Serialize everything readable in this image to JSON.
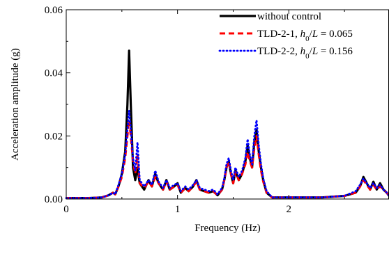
{
  "chart_data": {
    "type": "line",
    "xlabel": "Frequency (Hz)",
    "ylabel": "Acceleration amplitude (g)",
    "xlim": [
      0,
      2.9
    ],
    "ylim": [
      0,
      0.06
    ],
    "xticks": [
      0,
      1,
      2
    ],
    "xtick_labels": [
      "0",
      "1",
      "2"
    ],
    "yticks": [
      0,
      0.02,
      0.04,
      0.06
    ],
    "ytick_labels": [
      "0.00",
      "0.02",
      "0.04",
      "0.06"
    ],
    "legend_position": "top-right",
    "grid": false,
    "legend": [
      {
        "id": "s1",
        "text": "without control"
      },
      {
        "id": "s2",
        "pre": "TLD-2-1, ",
        "h": "h",
        "sub": "0",
        "slash": "/",
        "L": "L",
        "post": " = 0.065"
      },
      {
        "id": "s3",
        "pre": "TLD-2-2, ",
        "h": "h",
        "sub": "0",
        "slash": "/",
        "L": "L",
        "post": " = 0.156"
      }
    ],
    "series": [
      {
        "id": "s1",
        "name": "without control",
        "color": "#000000",
        "style": "solid",
        "points": [
          [
            0.0,
            0.0003
          ],
          [
            0.2,
            0.0003
          ],
          [
            0.32,
            0.0005
          ],
          [
            0.38,
            0.0012
          ],
          [
            0.42,
            0.002
          ],
          [
            0.44,
            0.0015
          ],
          [
            0.47,
            0.004
          ],
          [
            0.5,
            0.008
          ],
          [
            0.53,
            0.015
          ],
          [
            0.55,
            0.03
          ],
          [
            0.565,
            0.047
          ],
          [
            0.58,
            0.03
          ],
          [
            0.6,
            0.01
          ],
          [
            0.62,
            0.006
          ],
          [
            0.64,
            0.01
          ],
          [
            0.66,
            0.005
          ],
          [
            0.7,
            0.003
          ],
          [
            0.74,
            0.006
          ],
          [
            0.77,
            0.004
          ],
          [
            0.8,
            0.008
          ],
          [
            0.83,
            0.005
          ],
          [
            0.87,
            0.003
          ],
          [
            0.9,
            0.006
          ],
          [
            0.93,
            0.003
          ],
          [
            0.97,
            0.004
          ],
          [
            1.0,
            0.005
          ],
          [
            1.03,
            0.002
          ],
          [
            1.07,
            0.0035
          ],
          [
            1.1,
            0.0025
          ],
          [
            1.14,
            0.004
          ],
          [
            1.17,
            0.006
          ],
          [
            1.2,
            0.003
          ],
          [
            1.24,
            0.0025
          ],
          [
            1.28,
            0.002
          ],
          [
            1.32,
            0.0025
          ],
          [
            1.36,
            0.0012
          ],
          [
            1.4,
            0.003
          ],
          [
            1.42,
            0.006
          ],
          [
            1.44,
            0.01
          ],
          [
            1.46,
            0.012
          ],
          [
            1.48,
            0.008
          ],
          [
            1.5,
            0.005
          ],
          [
            1.52,
            0.009
          ],
          [
            1.55,
            0.006
          ],
          [
            1.58,
            0.008
          ],
          [
            1.61,
            0.012
          ],
          [
            1.63,
            0.017
          ],
          [
            1.65,
            0.013
          ],
          [
            1.67,
            0.01
          ],
          [
            1.69,
            0.018
          ],
          [
            1.71,
            0.022
          ],
          [
            1.73,
            0.015
          ],
          [
            1.75,
            0.01
          ],
          [
            1.77,
            0.006
          ],
          [
            1.8,
            0.002
          ],
          [
            1.85,
            0.0005
          ],
          [
            2.0,
            0.0005
          ],
          [
            2.3,
            0.0005
          ],
          [
            2.5,
            0.001
          ],
          [
            2.6,
            0.002
          ],
          [
            2.64,
            0.004
          ],
          [
            2.67,
            0.007
          ],
          [
            2.7,
            0.005
          ],
          [
            2.73,
            0.003
          ],
          [
            2.76,
            0.0055
          ],
          [
            2.79,
            0.003
          ],
          [
            2.82,
            0.005
          ],
          [
            2.85,
            0.003
          ],
          [
            2.88,
            0.002
          ],
          [
            2.9,
            0.001
          ]
        ]
      },
      {
        "id": "s2",
        "name": "TLD-2-1, h0/L = 0.065",
        "color": "#ff0000",
        "style": "dash",
        "points": [
          [
            0.0,
            0.0003
          ],
          [
            0.2,
            0.0003
          ],
          [
            0.32,
            0.0005
          ],
          [
            0.38,
            0.0012
          ],
          [
            0.42,
            0.002
          ],
          [
            0.44,
            0.0015
          ],
          [
            0.47,
            0.004
          ],
          [
            0.5,
            0.007
          ],
          [
            0.53,
            0.013
          ],
          [
            0.55,
            0.02
          ],
          [
            0.565,
            0.025
          ],
          [
            0.58,
            0.02
          ],
          [
            0.6,
            0.012
          ],
          [
            0.62,
            0.008
          ],
          [
            0.64,
            0.014
          ],
          [
            0.66,
            0.005
          ],
          [
            0.7,
            0.0035
          ],
          [
            0.74,
            0.0055
          ],
          [
            0.77,
            0.004
          ],
          [
            0.8,
            0.007
          ],
          [
            0.83,
            0.005
          ],
          [
            0.87,
            0.003
          ],
          [
            0.9,
            0.0055
          ],
          [
            0.93,
            0.003
          ],
          [
            0.97,
            0.004
          ],
          [
            1.0,
            0.0045
          ],
          [
            1.03,
            0.002
          ],
          [
            1.07,
            0.0035
          ],
          [
            1.1,
            0.0025
          ],
          [
            1.14,
            0.004
          ],
          [
            1.17,
            0.0055
          ],
          [
            1.2,
            0.003
          ],
          [
            1.24,
            0.0025
          ],
          [
            1.28,
            0.002
          ],
          [
            1.32,
            0.0025
          ],
          [
            1.36,
            0.0012
          ],
          [
            1.4,
            0.003
          ],
          [
            1.42,
            0.006
          ],
          [
            1.44,
            0.01
          ],
          [
            1.46,
            0.012
          ],
          [
            1.48,
            0.008
          ],
          [
            1.5,
            0.005
          ],
          [
            1.52,
            0.0085
          ],
          [
            1.55,
            0.006
          ],
          [
            1.58,
            0.008
          ],
          [
            1.61,
            0.011
          ],
          [
            1.63,
            0.015
          ],
          [
            1.65,
            0.012
          ],
          [
            1.67,
            0.01
          ],
          [
            1.69,
            0.016
          ],
          [
            1.71,
            0.02
          ],
          [
            1.73,
            0.014
          ],
          [
            1.75,
            0.009
          ],
          [
            1.77,
            0.0055
          ],
          [
            1.8,
            0.002
          ],
          [
            1.85,
            0.0005
          ],
          [
            2.0,
            0.0005
          ],
          [
            2.3,
            0.0005
          ],
          [
            2.5,
            0.001
          ],
          [
            2.6,
            0.002
          ],
          [
            2.64,
            0.004
          ],
          [
            2.67,
            0.006
          ],
          [
            2.7,
            0.0045
          ],
          [
            2.73,
            0.003
          ],
          [
            2.76,
            0.0045
          ],
          [
            2.79,
            0.003
          ],
          [
            2.82,
            0.004
          ],
          [
            2.85,
            0.003
          ],
          [
            2.88,
            0.002
          ],
          [
            2.9,
            0.001
          ]
        ]
      },
      {
        "id": "s3",
        "name": "TLD-2-2, h0/L = 0.156",
        "color": "#0000ff",
        "style": "dot",
        "points": [
          [
            0.0,
            0.0003
          ],
          [
            0.2,
            0.0003
          ],
          [
            0.32,
            0.0005
          ],
          [
            0.38,
            0.0012
          ],
          [
            0.42,
            0.002
          ],
          [
            0.44,
            0.0015
          ],
          [
            0.47,
            0.0045
          ],
          [
            0.5,
            0.008
          ],
          [
            0.53,
            0.014
          ],
          [
            0.55,
            0.022
          ],
          [
            0.565,
            0.028
          ],
          [
            0.58,
            0.022
          ],
          [
            0.6,
            0.013
          ],
          [
            0.62,
            0.009
          ],
          [
            0.64,
            0.018
          ],
          [
            0.66,
            0.006
          ],
          [
            0.7,
            0.004
          ],
          [
            0.74,
            0.006
          ],
          [
            0.77,
            0.0045
          ],
          [
            0.8,
            0.009
          ],
          [
            0.83,
            0.0055
          ],
          [
            0.87,
            0.0035
          ],
          [
            0.9,
            0.006
          ],
          [
            0.93,
            0.0035
          ],
          [
            0.97,
            0.0045
          ],
          [
            1.0,
            0.005
          ],
          [
            1.03,
            0.0025
          ],
          [
            1.07,
            0.004
          ],
          [
            1.1,
            0.003
          ],
          [
            1.14,
            0.0045
          ],
          [
            1.17,
            0.006
          ],
          [
            1.2,
            0.0035
          ],
          [
            1.24,
            0.003
          ],
          [
            1.28,
            0.0025
          ],
          [
            1.32,
            0.003
          ],
          [
            1.36,
            0.0015
          ],
          [
            1.4,
            0.0035
          ],
          [
            1.42,
            0.0065
          ],
          [
            1.44,
            0.011
          ],
          [
            1.46,
            0.013
          ],
          [
            1.48,
            0.009
          ],
          [
            1.5,
            0.006
          ],
          [
            1.52,
            0.01
          ],
          [
            1.55,
            0.007
          ],
          [
            1.58,
            0.009
          ],
          [
            1.61,
            0.013
          ],
          [
            1.63,
            0.019
          ],
          [
            1.65,
            0.014
          ],
          [
            1.67,
            0.011
          ],
          [
            1.69,
            0.02
          ],
          [
            1.71,
            0.025
          ],
          [
            1.73,
            0.017
          ],
          [
            1.75,
            0.011
          ],
          [
            1.77,
            0.0065
          ],
          [
            1.8,
            0.0025
          ],
          [
            1.85,
            0.0005
          ],
          [
            2.0,
            0.0005
          ],
          [
            2.3,
            0.0005
          ],
          [
            2.5,
            0.001
          ],
          [
            2.6,
            0.0025
          ],
          [
            2.64,
            0.0045
          ],
          [
            2.67,
            0.0065
          ],
          [
            2.7,
            0.005
          ],
          [
            2.73,
            0.0035
          ],
          [
            2.76,
            0.005
          ],
          [
            2.79,
            0.0035
          ],
          [
            2.82,
            0.0045
          ],
          [
            2.85,
            0.003
          ],
          [
            2.88,
            0.002
          ],
          [
            2.9,
            0.001
          ]
        ]
      }
    ]
  }
}
